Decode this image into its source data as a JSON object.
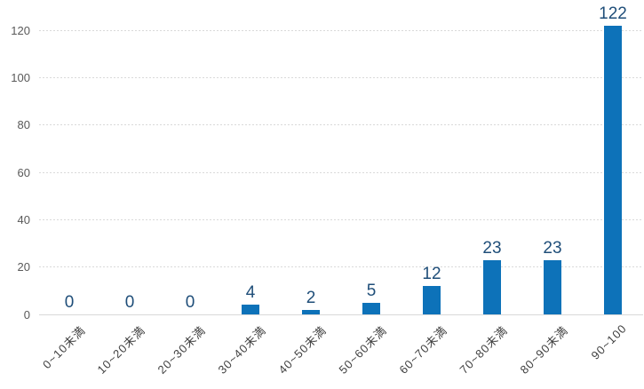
{
  "chart_data": {
    "type": "bar",
    "title": "",
    "xlabel": "",
    "ylabel": "",
    "categories": [
      "0~10未満",
      "10~20未満",
      "20~30未満",
      "30~40未満",
      "40~50未満",
      "50~60未満",
      "60~70未満",
      "70~80未満",
      "80~90未満",
      "90~100"
    ],
    "values": [
      0,
      0,
      0,
      4,
      2,
      5,
      12,
      23,
      23,
      122
    ],
    "value_labels": [
      "0",
      "0",
      "0",
      "4",
      "2",
      "5",
      "12",
      "23",
      "23",
      "122"
    ],
    "yticks": [
      0,
      20,
      40,
      60,
      80,
      100,
      120
    ],
    "ylim": [
      0,
      120
    ],
    "grid": "horizontal-dashed",
    "legend": "none",
    "colors": {
      "bar": "#0d72b9",
      "value_label": "#1f4e79",
      "y_tick_label": "#595959",
      "x_tick_label": "#404040",
      "gridline": "#d9d9d9",
      "axis_line": "#d9d9d9",
      "background": "#ffffff"
    }
  }
}
